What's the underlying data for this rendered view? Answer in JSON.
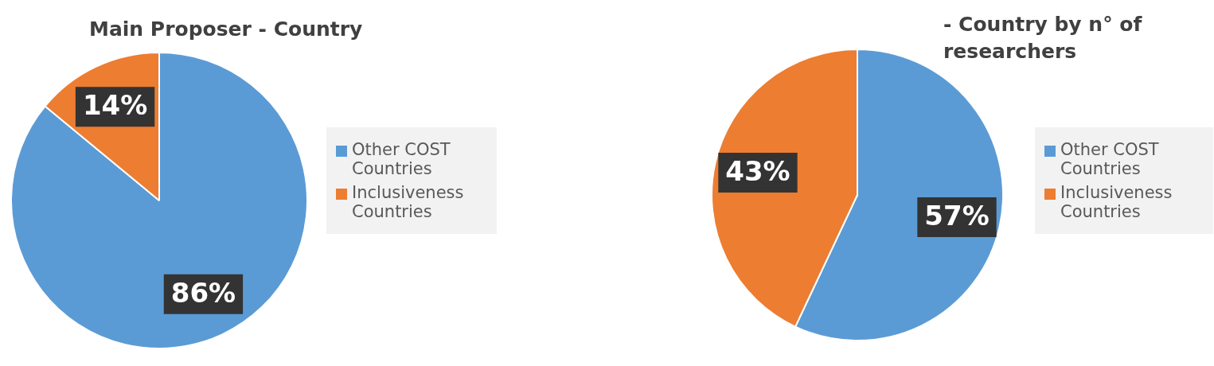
{
  "chart_data": [
    {
      "type": "pie",
      "title": "Main Proposer - Country",
      "categories": [
        "Other COST Countries",
        "Inclusiveness Countries"
      ],
      "values": [
        86,
        14
      ],
      "colors": [
        "#5b9bd5",
        "#ed7d31"
      ],
      "value_labels": [
        "86%",
        "14%"
      ],
      "legend": "right"
    },
    {
      "type": "pie",
      "title": "- Country by n° of researchers",
      "categories": [
        "Other COST Countries",
        "Inclusiveness Countries"
      ],
      "values": [
        57,
        43
      ],
      "colors": [
        "#5b9bd5",
        "#ed7d31"
      ],
      "value_labels": [
        "57%",
        "43%"
      ],
      "legend": "right"
    }
  ]
}
